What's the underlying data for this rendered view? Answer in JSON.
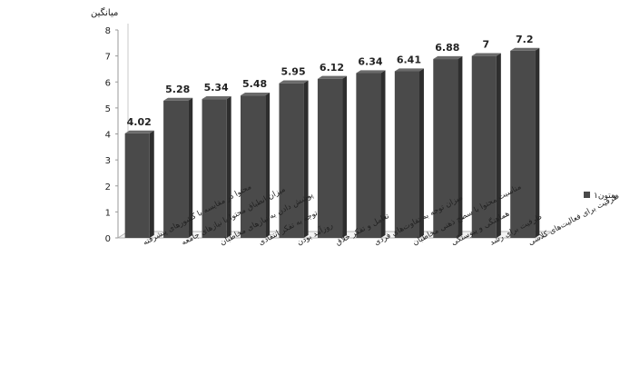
{
  "chart_data": {
    "type": "bar",
    "ylabel": "میانگین",
    "ylim": [
      0,
      8
    ],
    "yticks": [
      "0",
      "1",
      "2",
      "3",
      "4",
      "5",
      "6",
      "7",
      "8"
    ],
    "legend": {
      "position": "right",
      "entries": [
        "ستون۱"
      ]
    },
    "grid": false,
    "series": [
      {
        "name": "ستون۱",
        "color": "#4a4a4a",
        "values": [
          4.02,
          5.28,
          5.34,
          5.48,
          5.95,
          6.12,
          6.34,
          6.41,
          6.88,
          7,
          7.2
        ],
        "labels": [
          "4.02",
          "5.28",
          "5.34",
          "5.48",
          "5.95",
          "6.12",
          "6.34",
          "6.41",
          "6.88",
          "7",
          "7.2"
        ]
      }
    ],
    "categories": [
      "محتوا در مقایسه با کشورهای پیشرفته",
      "میزان انطباق محتوا با نیازهای جامعه",
      "پوشش دادن به نیازهای مخاطبان",
      "توجه به تفکر انتقادی",
      "روزآمد بودن",
      "تعامل و تفکر خلاق",
      "میزان توجه به تفاوت‌های فردی",
      "مناسبت محتوا با سطح ذهنی مخاطبان",
      "هماهنگی و پیوستگی",
      "ظرفیت برای رشد",
      "ظرفیت برای فعالیت‌های کلاسی"
    ]
  }
}
